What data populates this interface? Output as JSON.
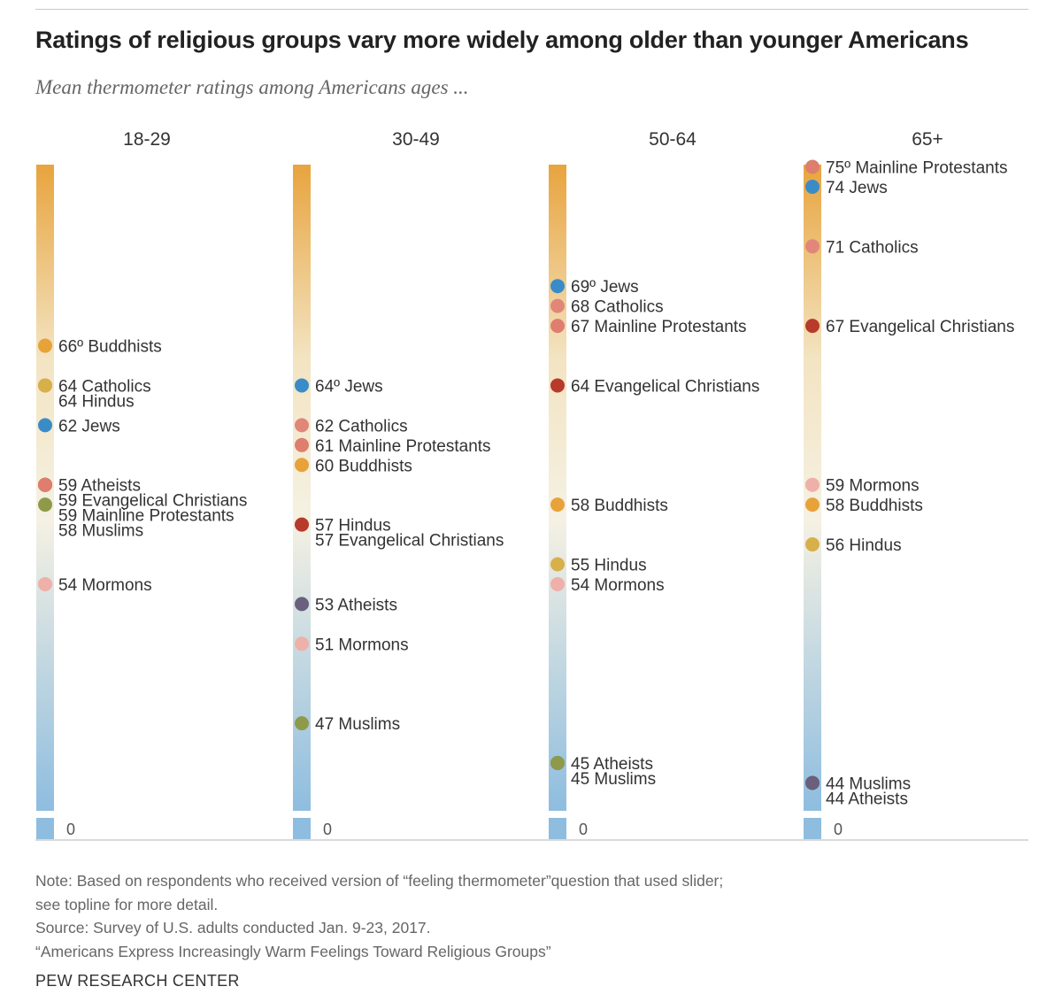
{
  "title": "Ratings of religious groups vary more widely among older than younger Americans",
  "subtitle": "Mean thermometer ratings among Americans ages ...",
  "chart_data": {
    "type": "thermometer-dot",
    "title": "Ratings of religious groups vary more widely among older than younger Americans",
    "subtitle": "Mean thermometer ratings among Americans ages ...",
    "unit_symbol": "º",
    "baseline_label": "0",
    "scale_range": [
      40,
      76
    ],
    "colors": {
      "Buddhists": "#e8a23a",
      "Catholics": "#e0877a",
      "Hindus": "#d8b04a",
      "Jews": "#3a8cc8",
      "Atheists": "#6a5f7c",
      "Evangelical Christians": "#b83a2a",
      "Mainline Protestants": "#de7e6e",
      "Muslims": "#8e9a4a",
      "Mormons": "#eeb0a8"
    },
    "gradient": {
      "top": "#e8a43e",
      "middle": "#f5f1e3",
      "bottom": "#8ebddf"
    },
    "groups": [
      {
        "age": "18-29",
        "items": [
          {
            "name": "Buddhists",
            "value": 66
          },
          {
            "name": "Catholics",
            "value": 64
          },
          {
            "name": "Hindus",
            "value": 64
          },
          {
            "name": "Jews",
            "value": 62
          },
          {
            "name": "Atheists",
            "value": 59
          },
          {
            "name": "Evangelical Christians",
            "value": 59
          },
          {
            "name": "Mainline Protestants",
            "value": 59
          },
          {
            "name": "Muslims",
            "value": 58
          },
          {
            "name": "Mormons",
            "value": 54
          }
        ]
      },
      {
        "age": "30-49",
        "items": [
          {
            "name": "Jews",
            "value": 64
          },
          {
            "name": "Catholics",
            "value": 62
          },
          {
            "name": "Mainline Protestants",
            "value": 61
          },
          {
            "name": "Buddhists",
            "value": 60
          },
          {
            "name": "Hindus",
            "value": 57
          },
          {
            "name": "Evangelical Christians",
            "value": 57
          },
          {
            "name": "Atheists",
            "value": 53
          },
          {
            "name": "Mormons",
            "value": 51
          },
          {
            "name": "Muslims",
            "value": 47
          }
        ]
      },
      {
        "age": "50-64",
        "items": [
          {
            "name": "Jews",
            "value": 69
          },
          {
            "name": "Catholics",
            "value": 68
          },
          {
            "name": "Mainline Protestants",
            "value": 67
          },
          {
            "name": "Evangelical Christians",
            "value": 64
          },
          {
            "name": "Buddhists",
            "value": 58
          },
          {
            "name": "Hindus",
            "value": 55
          },
          {
            "name": "Mormons",
            "value": 54
          },
          {
            "name": "Atheists",
            "value": 45
          },
          {
            "name": "Muslims",
            "value": 45
          }
        ]
      },
      {
        "age": "65+",
        "items": [
          {
            "name": "Mainline Protestants",
            "value": 75
          },
          {
            "name": "Jews",
            "value": 74
          },
          {
            "name": "Catholics",
            "value": 71
          },
          {
            "name": "Evangelical Christians",
            "value": 67
          },
          {
            "name": "Mormons",
            "value": 59
          },
          {
            "name": "Buddhists",
            "value": 58
          },
          {
            "name": "Hindus",
            "value": 56
          },
          {
            "name": "Muslims",
            "value": 44
          },
          {
            "name": "Atheists",
            "value": 44
          }
        ]
      }
    ]
  },
  "notes": {
    "line1": "Note: Based on respondents who received version of “feeling thermometer”question that used slider;",
    "line2": "see topline for more detail.",
    "line3": "Source: Survey of U.S. adults conducted Jan. 9-23, 2017.",
    "line4": "“Americans Express Increasingly Warm Feelings Toward Religious Groups”"
  },
  "brand": "PEW RESEARCH CENTER"
}
